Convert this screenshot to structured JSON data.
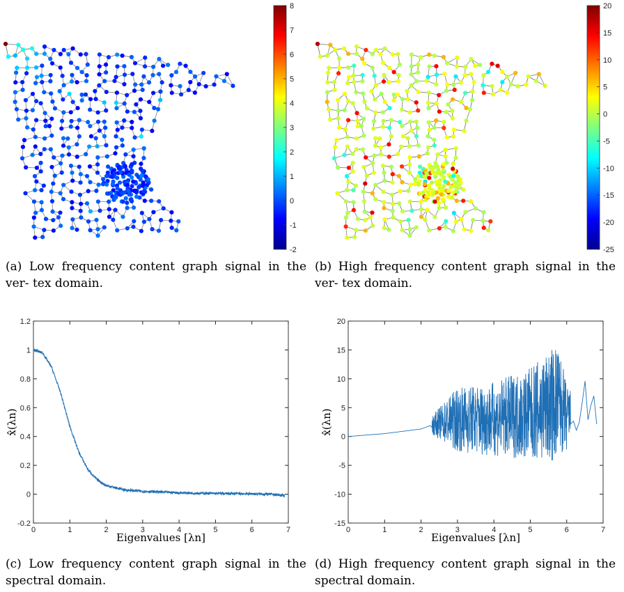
{
  "captions": {
    "a": "(a)  Low frequency content graph signal in the ver- tex domain.",
    "b": "(b)  High frequency content graph signal in the ver- tex domain.",
    "c": "(c)  Low frequency content graph signal in the spectral domain.",
    "d": "(d)  High frequency content graph signal in the spectral domain."
  },
  "colorbars": {
    "a": {
      "ticks": [
        "8",
        "7",
        "6",
        "5",
        "4",
        "3",
        "2",
        "1",
        "0",
        "-1",
        "-2"
      ],
      "range": [
        -2,
        8
      ]
    },
    "b": {
      "ticks": [
        "20",
        "15",
        "10",
        "5",
        "0",
        "-5",
        "-10",
        "-15",
        "-20",
        "-25"
      ],
      "range": [
        -25,
        20
      ]
    }
  },
  "colors": {
    "line": "#1f6fb5",
    "edge": "#8c8c8c"
  },
  "chart_data": [
    {
      "type": "line",
      "title": "",
      "xlabel": "Eigenvalues [λn]",
      "ylabel": "x̂(λn)",
      "xlim": [
        0,
        7
      ],
      "ylim": [
        -0.2,
        1.2
      ],
      "xticks": [
        "0",
        "1",
        "2",
        "3",
        "4",
        "5",
        "6",
        "7"
      ],
      "yticks": [
        "1.2",
        "1",
        "0.8",
        "0.6",
        "0.4",
        "0.2",
        "0",
        "-0.2"
      ],
      "x": [
        0,
        0.25,
        0.5,
        0.75,
        1.0,
        1.25,
        1.5,
        1.75,
        2.0,
        2.5,
        3.0,
        3.5,
        4.0,
        5.0,
        6.0,
        6.5,
        6.9
      ],
      "y": [
        1.0,
        0.98,
        0.88,
        0.7,
        0.47,
        0.29,
        0.17,
        0.1,
        0.06,
        0.03,
        0.02,
        0.015,
        0.01,
        0.005,
        0.003,
        0.0,
        -0.01
      ]
    },
    {
      "type": "line",
      "title": "",
      "xlabel": "Eigenvalues [λn]",
      "ylabel": "x̂(λn)",
      "xlim": [
        0,
        7
      ],
      "ylim": [
        -15,
        20
      ],
      "xticks": [
        "0",
        "1",
        "2",
        "3",
        "4",
        "5",
        "6",
        "7"
      ],
      "yticks": [
        "20",
        "15",
        "10",
        "5",
        "0",
        "-5",
        "-10",
        "-15"
      ],
      "x": [
        0,
        1.0,
        2.0,
        2.3,
        3.0,
        4.0,
        5.0,
        5.5,
        5.8,
        6.0,
        6.5,
        6.9
      ],
      "y": [
        0,
        0.5,
        1.3,
        2.0,
        3.0,
        3.0,
        4.0,
        5.0,
        6.0,
        3.0,
        6.0,
        1.5
      ],
      "noise_envelope": [
        [
          2.3,
          2.0
        ],
        [
          3.0,
          7.0
        ],
        [
          4.0,
          8.0
        ],
        [
          5.0,
          10.0
        ],
        [
          5.7,
          13.0
        ],
        [
          6.1,
          6.0
        ]
      ]
    }
  ]
}
